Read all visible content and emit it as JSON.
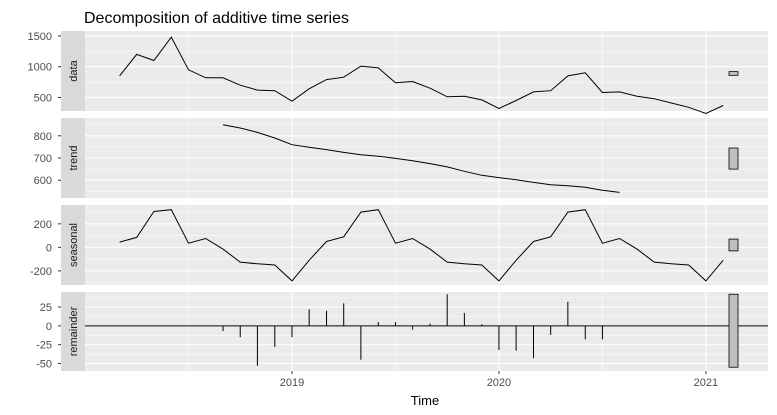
{
  "chart_data": {
    "type": "line",
    "title": "Decomposition of additive time series",
    "xlabel": "Time",
    "xlim": [
      2018.0,
      2021.3
    ],
    "x_ticks": [
      2019,
      2020,
      2021
    ],
    "x_tick_labels": [
      "2019",
      "2020",
      "2021"
    ],
    "grid": true,
    "colors": {
      "panel_bg": "#ebebeb",
      "grid": "#ffffff",
      "strip_bg": "#d9d9d9",
      "line": "#000000",
      "bar_fill": "#bfbfbf"
    },
    "panels": [
      {
        "name": "data",
        "strip_label": "data",
        "style": "line",
        "ylim": [
          280,
          1580
        ],
        "y_ticks": [
          500,
          1000,
          1500
        ],
        "y_tick_labels": [
          "500",
          "1000",
          "1500"
        ],
        "range_bar": [
          860,
          920
        ],
        "x": [
          2018.167,
          2018.25,
          2018.333,
          2018.417,
          2018.5,
          2018.583,
          2018.667,
          2018.75,
          2018.833,
          2018.917,
          2019.0,
          2019.083,
          2019.167,
          2019.25,
          2019.333,
          2019.417,
          2019.5,
          2019.583,
          2019.667,
          2019.75,
          2019.833,
          2019.917,
          2020.0,
          2020.083,
          2020.167,
          2020.25,
          2020.333,
          2020.417,
          2020.5,
          2020.583,
          2020.667,
          2020.75,
          2020.833,
          2020.917,
          2021.0,
          2021.083
        ],
        "y": [
          850,
          1200,
          1100,
          1480,
          950,
          820,
          820,
          700,
          620,
          610,
          440,
          640,
          790,
          830,
          1010,
          980,
          740,
          760,
          650,
          510,
          520,
          460,
          320,
          450,
          590,
          610,
          850,
          900,
          580,
          590,
          520,
          480,
          410,
          340,
          240,
          370
        ]
      },
      {
        "name": "trend",
        "strip_label": "trend",
        "style": "line",
        "ylim": [
          520,
          880
        ],
        "y_ticks": [
          600,
          700,
          800
        ],
        "y_tick_labels": [
          "600",
          "700",
          "800"
        ],
        "range_bar": [
          650,
          745
        ],
        "x": [
          2018.667,
          2018.75,
          2018.833,
          2018.917,
          2019.0,
          2019.083,
          2019.167,
          2019.25,
          2019.333,
          2019.417,
          2019.5,
          2019.583,
          2019.667,
          2019.75,
          2019.833,
          2019.917,
          2020.0,
          2020.083,
          2020.167,
          2020.25,
          2020.333,
          2020.417,
          2020.5,
          2020.583
        ],
        "y": [
          850,
          835,
          815,
          790,
          760,
          748,
          738,
          725,
          715,
          708,
          698,
          688,
          675,
          660,
          640,
          622,
          612,
          602,
          590,
          580,
          575,
          568,
          555,
          545
        ]
      },
      {
        "name": "seasonal",
        "strip_label": "seasonal",
        "style": "line",
        "ylim": [
          -320,
          360
        ],
        "y_ticks": [
          -200,
          0,
          200
        ],
        "y_tick_labels": [
          "-200",
          "0",
          "200"
        ],
        "range_bar": [
          -30,
          70
        ],
        "x": [
          2018.167,
          2018.25,
          2018.333,
          2018.417,
          2018.5,
          2018.583,
          2018.667,
          2018.75,
          2018.833,
          2018.917,
          2019.0,
          2019.083,
          2019.167,
          2019.25,
          2019.333,
          2019.417,
          2019.5,
          2019.583,
          2019.667,
          2019.75,
          2019.833,
          2019.917,
          2020.0,
          2020.083,
          2020.167,
          2020.25,
          2020.333,
          2020.417,
          2020.5,
          2020.583,
          2020.667,
          2020.75,
          2020.833,
          2020.917,
          2021.0,
          2021.083
        ],
        "y": [
          45,
          85,
          305,
          320,
          35,
          75,
          -15,
          -125,
          -140,
          -150,
          -285,
          -110,
          50,
          90,
          300,
          320,
          35,
          75,
          -15,
          -125,
          -140,
          -150,
          -285,
          -110,
          50,
          90,
          300,
          320,
          35,
          75,
          -15,
          -125,
          -140,
          -150,
          -285,
          -110
        ]
      },
      {
        "name": "remainder",
        "strip_label": "remainder",
        "style": "bars",
        "ylim": [
          -60,
          45
        ],
        "y_ticks": [
          -50,
          -25,
          0,
          25
        ],
        "y_tick_labels": [
          "-50",
          "-25",
          "0",
          "25"
        ],
        "range_bar": [
          -55,
          42
        ],
        "x": [
          2018.667,
          2018.75,
          2018.833,
          2018.917,
          2019.0,
          2019.083,
          2019.167,
          2019.25,
          2019.333,
          2019.417,
          2019.5,
          2019.583,
          2019.667,
          2019.75,
          2019.833,
          2019.917,
          2020.0,
          2020.083,
          2020.167,
          2020.25,
          2020.333,
          2020.417,
          2020.5,
          2020.583
        ],
        "y": [
          -7,
          -15,
          -53,
          -28,
          -15,
          22,
          20,
          30,
          -45,
          5,
          5,
          -5,
          3,
          42,
          17,
          2,
          -32,
          -33,
          -43,
          -12,
          32,
          -18,
          -18,
          0
        ]
      }
    ]
  }
}
